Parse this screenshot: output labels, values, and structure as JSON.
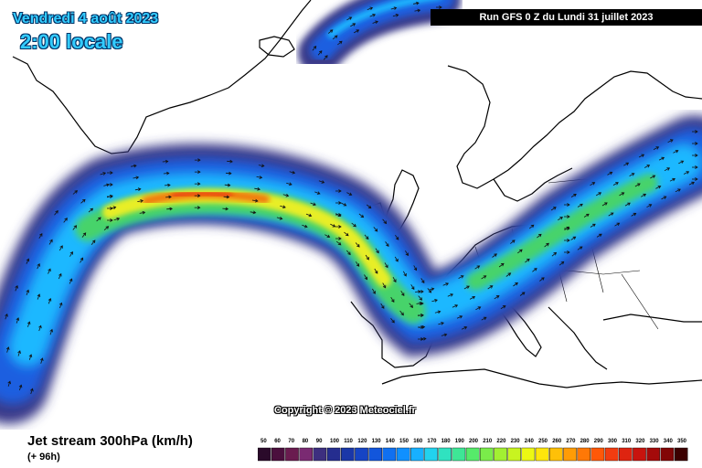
{
  "header": {
    "date": "Vendredi 4 août 2023",
    "time": "2:00 locale",
    "run": "Run GFS 0 Z du Lundi 31 juillet 2023"
  },
  "footer": {
    "copyright": "Copyright © 2023 Meteociel.fr",
    "legend_title": "Jet stream 300hPa (km/h)",
    "lead_time": "(+ 96h)"
  },
  "legend": {
    "ticks": [
      "50",
      "60",
      "70",
      "80",
      "90",
      "100",
      "110",
      "120",
      "130",
      "140",
      "150",
      "160",
      "170",
      "180",
      "190",
      "200",
      "210",
      "220",
      "230",
      "240",
      "250",
      "260",
      "270",
      "280",
      "290",
      "300",
      "310",
      "320",
      "330",
      "340",
      "350"
    ],
    "colors": [
      "#2a0a2a",
      "#4b0f3d",
      "#6a1b4f",
      "#7a2a72",
      "#3d2f7f",
      "#252d8f",
      "#1a37a8",
      "#1644c4",
      "#1256dc",
      "#1070f0",
      "#1090ff",
      "#18b0ff",
      "#22d2ee",
      "#30e2c0",
      "#3ee696",
      "#56ea6a",
      "#7aec4a",
      "#a2f032",
      "#c8f420",
      "#ecf814",
      "#ffe60c",
      "#ffc008",
      "#ff9c06",
      "#ff7806",
      "#ff5808",
      "#f23c10",
      "#de2410",
      "#c8140e",
      "#a40a0a",
      "#820606",
      "#3c0000"
    ]
  },
  "colors": {
    "jet_outer": "#3a3a8a",
    "jet_blue": "#1f5fe0",
    "jet_light": "#1fb8ff",
    "jet_green": "#46d36a",
    "jet_yellow": "#e8ee28",
    "jet_orange": "#f07a10",
    "jet_red": "#e83a10",
    "coast": "#000000"
  }
}
